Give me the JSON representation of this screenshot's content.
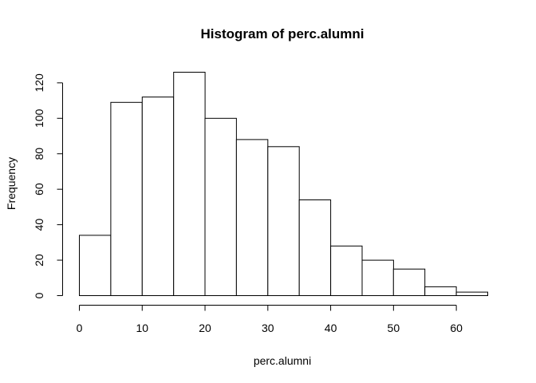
{
  "chart_data": {
    "type": "bar",
    "subtype": "histogram",
    "title": "Histogram of perc.alumni",
    "xlabel": "perc.alumni",
    "ylabel": "Frequency",
    "bin_edges": [
      0,
      5,
      10,
      15,
      20,
      25,
      30,
      35,
      40,
      45,
      50,
      55,
      60,
      65
    ],
    "values": [
      34,
      109,
      112,
      126,
      100,
      88,
      84,
      54,
      28,
      20,
      15,
      5,
      2
    ],
    "xlim": [
      0,
      65
    ],
    "ylim": [
      0,
      126
    ],
    "x_ticks": [
      0,
      10,
      20,
      30,
      40,
      50,
      60
    ],
    "y_ticks": [
      0,
      20,
      40,
      60,
      80,
      100,
      120
    ],
    "grid": false,
    "colors": {
      "bar_fill": "#ffffff",
      "bar_stroke": "#000000"
    }
  }
}
